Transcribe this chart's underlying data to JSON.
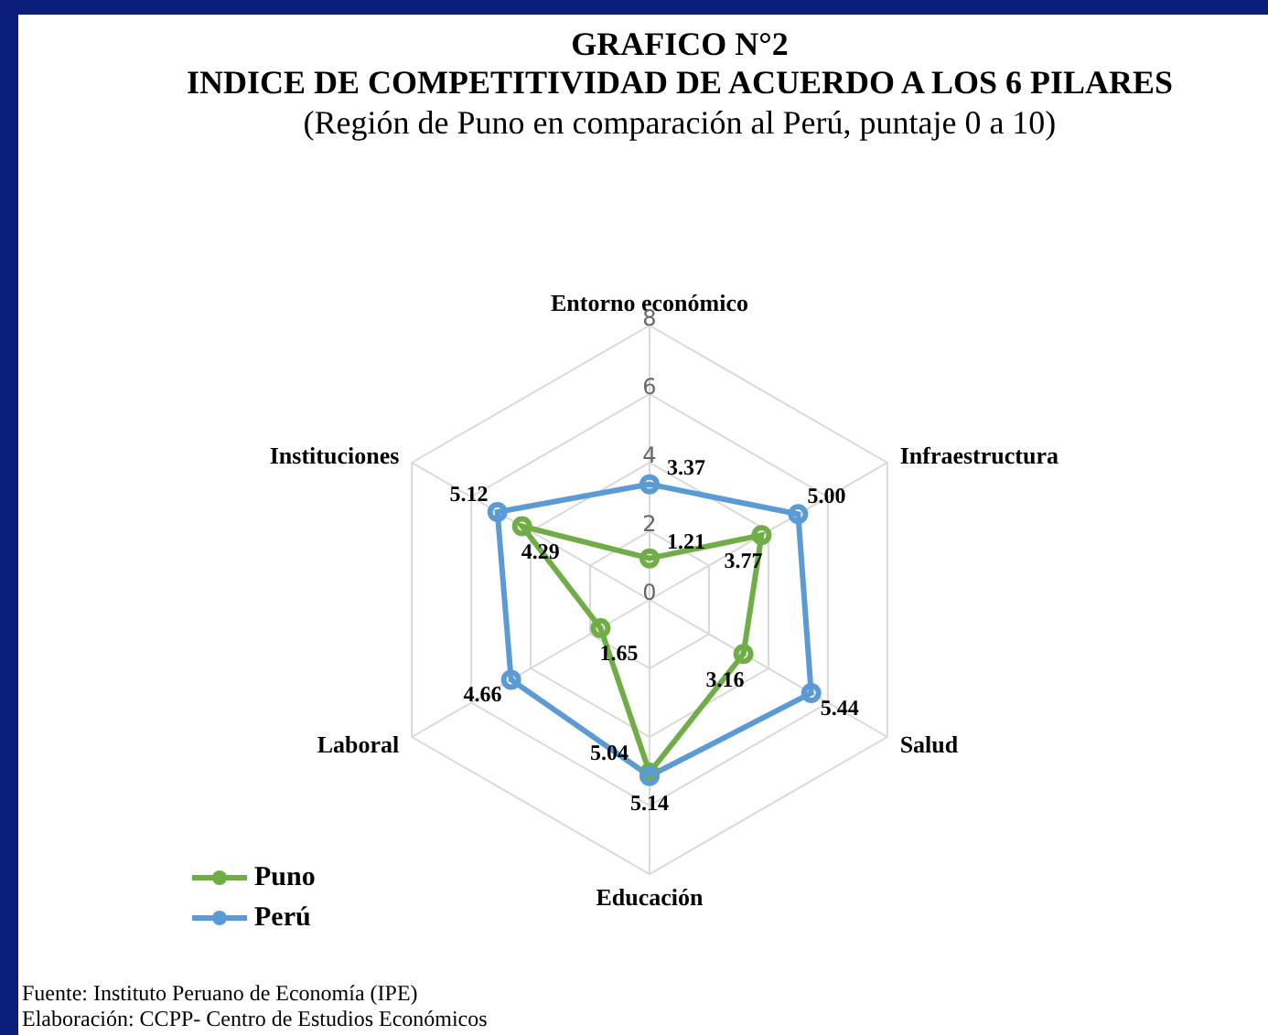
{
  "chart_data": {
    "type": "radar",
    "title": "GRAFICO N°2\nINDICE DE COMPETITIVIDAD DE ACUERDO A LOS 6 PILARES",
    "subtitle": "(Región de Puno en comparación al Perú, puntaje 0 a 10)",
    "categories": [
      "Entorno económico",
      "Infraestructura",
      "Salud",
      "Educación",
      "Laboral",
      "Instituciones"
    ],
    "series": [
      {
        "name": "Puno",
        "color": "#70ad47",
        "values": [
          1.21,
          3.77,
          3.16,
          5.04,
          1.65,
          4.29
        ],
        "value_labels": [
          "1.21",
          "3.77",
          "3.16",
          "5.04",
          "1.65",
          "4.29"
        ]
      },
      {
        "name": "Perú",
        "color": "#5b9bd5",
        "values": [
          3.37,
          5.0,
          5.44,
          5.14,
          4.66,
          5.12
        ],
        "value_labels": [
          "3.37",
          "5.00",
          "5.44",
          "5.14",
          "4.66",
          "5.12"
        ]
      }
    ],
    "ylim": [
      0,
      8
    ],
    "yticks": [
      0,
      2,
      4,
      6,
      8
    ],
    "grid": true,
    "legend": "bottom left",
    "marker": "circle",
    "annotations": [
      "Fuente: Instituto Peruano de Economía (IPE)",
      "Elaboración: CCPP- Centro de Estudios Económicos"
    ]
  }
}
